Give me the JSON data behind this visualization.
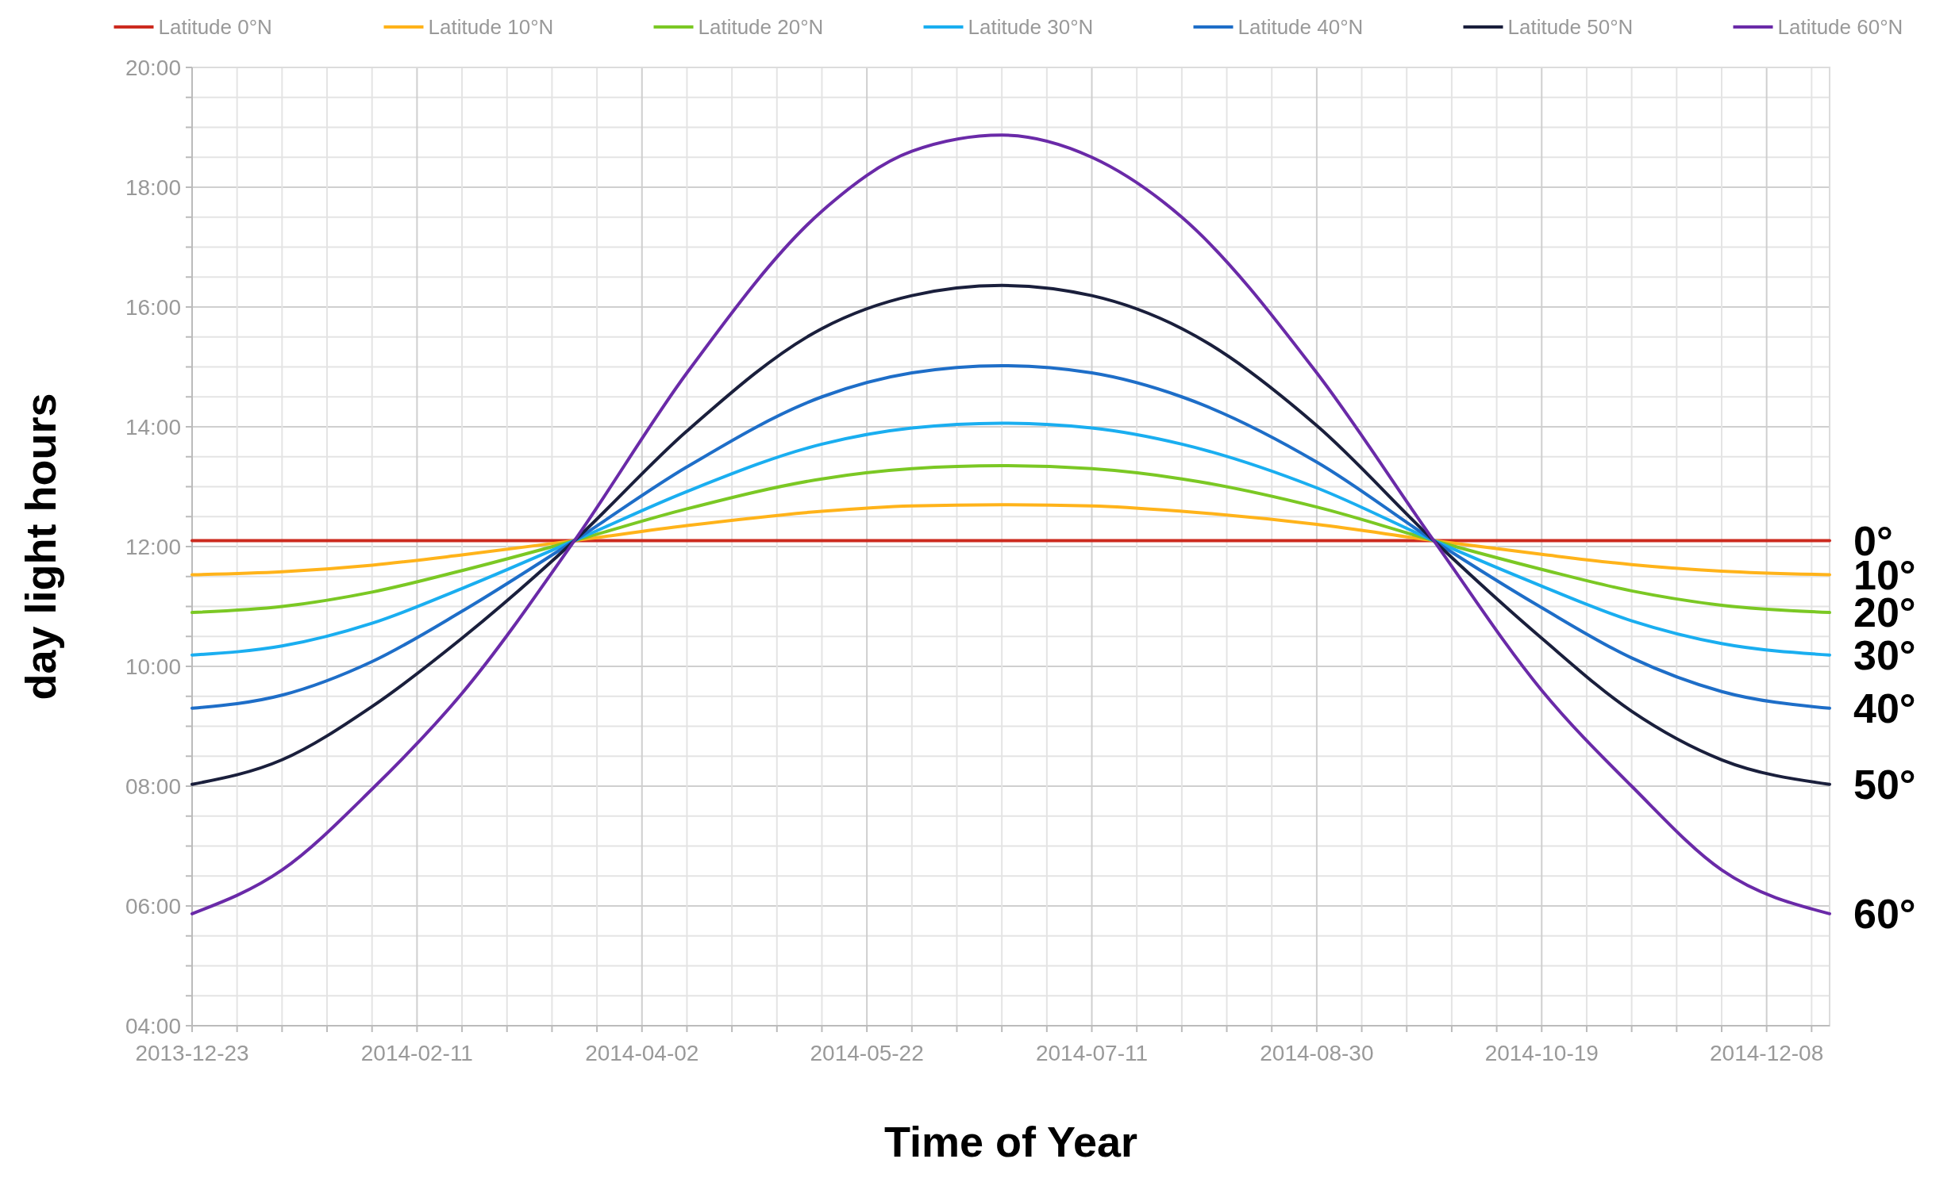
{
  "chart_data": {
    "type": "line",
    "xlabel": "Time of Year",
    "ylabel": "day light hours",
    "x": [
      "2013-12-23",
      "2014-01-12",
      "2014-02-01",
      "2014-02-21",
      "2014-03-18",
      "2014-04-12",
      "2014-05-12",
      "2014-06-01",
      "2014-06-21",
      "2014-07-11",
      "2014-07-31",
      "2014-08-30",
      "2014-09-25",
      "2014-10-19",
      "2014-11-08",
      "2014-11-28",
      "2014-12-22"
    ],
    "series": [
      {
        "name": "Latitude 0°N",
        "color": "#cc2a1f",
        "values": [
          12.1,
          12.1,
          12.1,
          12.1,
          12.1,
          12.1,
          12.1,
          12.1,
          12.1,
          12.1,
          12.1,
          12.1,
          12.1,
          12.1,
          12.1,
          12.1,
          12.1
        ]
      },
      {
        "name": "Latitude 10°N",
        "color": "#ffb31a",
        "values": [
          11.53,
          11.58,
          11.69,
          11.86,
          12.1,
          12.35,
          12.59,
          12.68,
          12.7,
          12.68,
          12.59,
          12.37,
          12.1,
          11.87,
          11.7,
          11.59,
          11.53
        ]
      },
      {
        "name": "Latitude 20°N",
        "color": "#7bc824",
        "values": [
          10.9,
          11.0,
          11.24,
          11.6,
          12.1,
          12.63,
          13.13,
          13.3,
          13.35,
          13.3,
          13.13,
          12.66,
          12.1,
          11.62,
          11.26,
          11.02,
          10.9
        ]
      },
      {
        "name": "Latitude 30°N",
        "color": "#1aaef0",
        "values": [
          10.19,
          10.34,
          10.72,
          11.3,
          12.1,
          12.92,
          13.71,
          13.98,
          14.06,
          13.98,
          13.71,
          12.98,
          12.1,
          11.34,
          10.76,
          10.38,
          10.19
        ]
      },
      {
        "name": "Latitude 40°N",
        "color": "#1e6ec8",
        "values": [
          9.3,
          9.52,
          10.08,
          10.92,
          12.1,
          13.33,
          14.5,
          14.9,
          15.02,
          14.9,
          14.5,
          13.41,
          12.1,
          10.98,
          10.14,
          9.58,
          9.3
        ]
      },
      {
        "name": "Latitude 50°N",
        "color": "#1a1f3c",
        "values": [
          8.03,
          8.44,
          9.33,
          10.47,
          12.1,
          13.93,
          15.64,
          16.19,
          16.36,
          16.19,
          15.64,
          14.02,
          12.1,
          10.47,
          9.25,
          8.44,
          8.03
        ]
      },
      {
        "name": "Latitude 60°N",
        "color": "#6a2aa8",
        "values": [
          5.87,
          6.6,
          7.95,
          9.55,
          12.1,
          14.9,
          17.6,
          18.6,
          18.87,
          18.5,
          17.5,
          14.9,
          12.1,
          9.6,
          8.0,
          6.6,
          5.87
        ]
      }
    ],
    "xlim": [
      "2013-12-23",
      "2014-12-22"
    ],
    "xticks": [
      {
        "value": "2013-12-23",
        "label": "2013-12-23"
      },
      {
        "value": "2014-01-02",
        "label": null
      },
      {
        "value": "2014-01-12",
        "label": null
      },
      {
        "value": "2014-01-22",
        "label": null
      },
      {
        "value": "2014-02-01",
        "label": null
      },
      {
        "value": "2014-02-11",
        "label": "2014-02-11"
      },
      {
        "value": "2014-02-21",
        "label": null
      },
      {
        "value": "2014-03-03",
        "label": null
      },
      {
        "value": "2014-03-13",
        "label": null
      },
      {
        "value": "2014-03-23",
        "label": null
      },
      {
        "value": "2014-04-02",
        "label": "2014-04-02"
      },
      {
        "value": "2014-04-12",
        "label": null
      },
      {
        "value": "2014-04-22",
        "label": null
      },
      {
        "value": "2014-05-02",
        "label": null
      },
      {
        "value": "2014-05-12",
        "label": null
      },
      {
        "value": "2014-05-22",
        "label": "2014-05-22"
      },
      {
        "value": "2014-06-01",
        "label": null
      },
      {
        "value": "2014-06-11",
        "label": null
      },
      {
        "value": "2014-06-21",
        "label": null
      },
      {
        "value": "2014-07-01",
        "label": null
      },
      {
        "value": "2014-07-11",
        "label": "2014-07-11"
      },
      {
        "value": "2014-07-21",
        "label": null
      },
      {
        "value": "2014-07-31",
        "label": null
      },
      {
        "value": "2014-08-10",
        "label": null
      },
      {
        "value": "2014-08-20",
        "label": null
      },
      {
        "value": "2014-08-30",
        "label": "2014-08-30"
      },
      {
        "value": "2014-09-09",
        "label": null
      },
      {
        "value": "2014-09-19",
        "label": null
      },
      {
        "value": "2014-09-29",
        "label": null
      },
      {
        "value": "2014-10-09",
        "label": null
      },
      {
        "value": "2014-10-19",
        "label": "2014-10-19"
      },
      {
        "value": "2014-10-29",
        "label": null
      },
      {
        "value": "2014-11-08",
        "label": null
      },
      {
        "value": "2014-11-18",
        "label": null
      },
      {
        "value": "2014-11-28",
        "label": null
      },
      {
        "value": "2014-12-08",
        "label": "2014-12-08"
      },
      {
        "value": "2014-12-18",
        "label": null
      }
    ],
    "ylim": [
      4,
      20
    ],
    "yticks": [
      {
        "value": 4,
        "label": "04:00"
      },
      {
        "value": 4.5,
        "label": null
      },
      {
        "value": 5,
        "label": null
      },
      {
        "value": 5.5,
        "label": null
      },
      {
        "value": 6,
        "label": "06:00"
      },
      {
        "value": 6.5,
        "label": null
      },
      {
        "value": 7,
        "label": null
      },
      {
        "value": 7.5,
        "label": null
      },
      {
        "value": 8,
        "label": "08:00"
      },
      {
        "value": 8.5,
        "label": null
      },
      {
        "value": 9,
        "label": null
      },
      {
        "value": 9.5,
        "label": null
      },
      {
        "value": 10,
        "label": "10:00"
      },
      {
        "value": 10.5,
        "label": null
      },
      {
        "value": 11,
        "label": null
      },
      {
        "value": 11.5,
        "label": null
      },
      {
        "value": 12,
        "label": "12:00"
      },
      {
        "value": 12.5,
        "label": null
      },
      {
        "value": 13,
        "label": null
      },
      {
        "value": 13.5,
        "label": null
      },
      {
        "value": 14,
        "label": "14:00"
      },
      {
        "value": 14.5,
        "label": null
      },
      {
        "value": 15,
        "label": null
      },
      {
        "value": 15.5,
        "label": null
      },
      {
        "value": 16,
        "label": "16:00"
      },
      {
        "value": 16.5,
        "label": null
      },
      {
        "value": 17,
        "label": null
      },
      {
        "value": 17.5,
        "label": null
      },
      {
        "value": 18,
        "label": "18:00"
      },
      {
        "value": 18.5,
        "label": null
      },
      {
        "value": 19,
        "label": null
      },
      {
        "value": 19.5,
        "label": null
      },
      {
        "value": 20,
        "label": "20:00"
      }
    ],
    "grid": true,
    "legend": "top",
    "marker": "none",
    "line_style": "solid",
    "annotations": [
      {
        "text": "0°",
        "x": "2014-12-22",
        "y": 12.1
      },
      {
        "text": "10°",
        "x": "2014-12-22",
        "y": 11.53
      },
      {
        "text": "20°",
        "x": "2014-12-22",
        "y": 10.9
      },
      {
        "text": "30°",
        "x": "2014-12-22",
        "y": 10.19
      },
      {
        "text": "40°",
        "x": "2014-12-22",
        "y": 9.3
      },
      {
        "text": "50°",
        "x": "2014-12-22",
        "y": 8.03
      },
      {
        "text": "60°",
        "x": "2014-12-22",
        "y": 5.87
      }
    ]
  }
}
